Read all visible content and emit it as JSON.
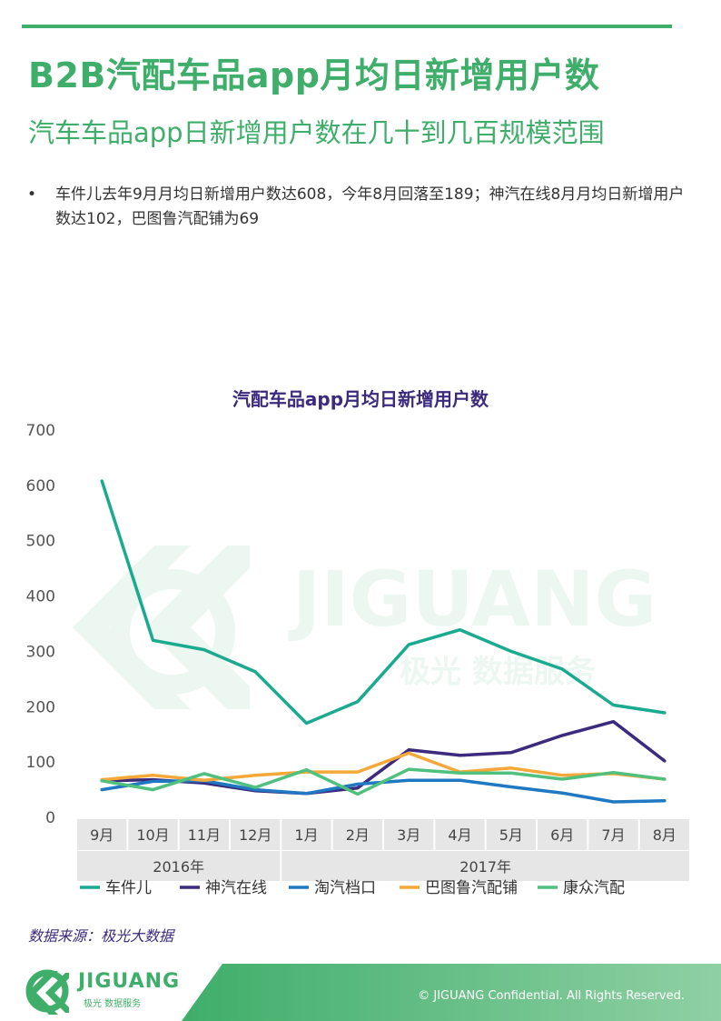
{
  "page": {
    "title": "B2B汽配车品app月均日新增用户数",
    "subtitle": "汽车车品app日新增用户数在几十到几百规模范围",
    "bullet_symbol": "•",
    "bullet": "车件儿去年9月月均日新增用户数达608，今年8月回落至189；神汽在线8月月均日新增用户数达102，巴图鲁汽配铺为69",
    "source": "数据来源：极光大数据",
    "copyright": "© JIGUANG  Confidential. All Rights Reserved.",
    "logo_text": "JIGUANG",
    "logo_sub": "极光 数据服务",
    "watermark_text": "JIGUANG",
    "watermark_sub": "极光 数据服务"
  },
  "chart_data": {
    "type": "line",
    "title": "汽配车品app月均日新增用户数",
    "categories": [
      "9月",
      "10月",
      "11月",
      "12月",
      "1月",
      "2月",
      "3月",
      "4月",
      "5月",
      "6月",
      "7月",
      "8月"
    ],
    "year_groups": [
      {
        "label": "2016年",
        "span": 4
      },
      {
        "label": "2017年",
        "span": 8
      }
    ],
    "ylim": [
      0,
      700
    ],
    "yticks": [
      0,
      100,
      200,
      300,
      400,
      500,
      600,
      700
    ],
    "grid": false,
    "legend_position": "bottom",
    "series": [
      {
        "name": "车件儿",
        "color": "#1aaa8f",
        "values": [
          608,
          320,
          303,
          263,
          170,
          209,
          312,
          339,
          300,
          268,
          203,
          189
        ]
      },
      {
        "name": "神汽在线",
        "color": "#3b2a7d",
        "values": [
          66,
          68,
          62,
          48,
          43,
          53,
          122,
          112,
          117,
          148,
          173,
          102
        ]
      },
      {
        "name": "淘汽档口",
        "color": "#1f78c1",
        "values": [
          50,
          65,
          66,
          50,
          43,
          60,
          67,
          67,
          55,
          44,
          28,
          30
        ]
      },
      {
        "name": "巴图鲁汽配铺",
        "color": "#f5a83a",
        "values": [
          68,
          76,
          67,
          76,
          82,
          82,
          116,
          82,
          89,
          76,
          79,
          69
        ]
      },
      {
        "name": "康众汽配",
        "color": "#4fc07e",
        "values": [
          66,
          50,
          79,
          54,
          86,
          42,
          87,
          80,
          80,
          69,
          81,
          69
        ]
      }
    ]
  }
}
